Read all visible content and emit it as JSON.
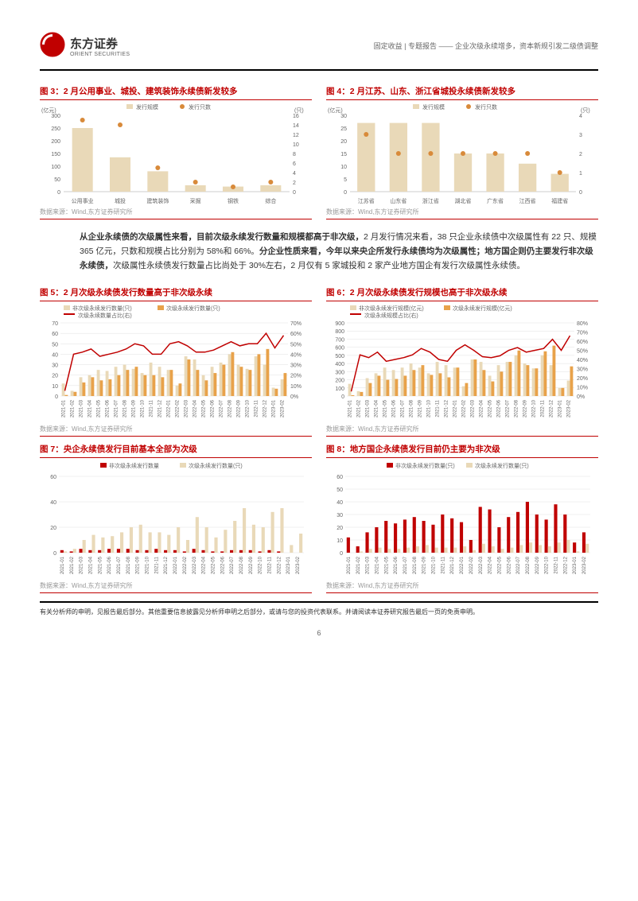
{
  "header": {
    "logo_cn": "东方证券",
    "logo_en": "ORIENT SECURITIES",
    "breadcrumb": "固定收益 | 专题报告 —— 企业次级永续增多，资本新规引发二级债调整"
  },
  "chart3": {
    "title": "图 3：2 月公用事业、城投、建筑装饰永续债新发较多",
    "type": "bar-dot",
    "y1_label": "(亿元)",
    "y2_label": "(只)",
    "legend_bar": "发行规模",
    "legend_dot": "发行只数",
    "bar_color": "#e9d9b8",
    "dot_color": "#d88a3a",
    "categories": [
      "公用事业",
      "城投",
      "建筑装饰",
      "采掘",
      "钢铁",
      "综合"
    ],
    "bars": [
      250,
      135,
      80,
      25,
      20,
      25
    ],
    "dots": [
      15,
      14,
      5,
      2,
      1,
      2
    ],
    "y1_max": 300,
    "y1_step": 50,
    "y2_max": 16,
    "y2_step": 2
  },
  "chart4": {
    "title": "图 4：2 月江苏、山东、浙江省城投永续债新发较多",
    "type": "bar-dot",
    "y1_label": "(亿元)",
    "y2_label": "(只)",
    "legend_bar": "发行规模",
    "legend_dot": "发行只数",
    "bar_color": "#e9d9b8",
    "dot_color": "#d88a3a",
    "categories": [
      "江苏省",
      "山东省",
      "浙江省",
      "湖北省",
      "广东省",
      "江西省",
      "福建省"
    ],
    "bars": [
      27,
      27,
      27,
      15,
      15,
      11,
      7
    ],
    "dots": [
      3,
      2,
      2,
      2,
      2,
      2,
      1
    ],
    "y1_max": 30,
    "y1_step": 5,
    "y2_max": 4,
    "y2_step": 1
  },
  "source_text": "数据来源：Wind,东方证券研究所",
  "paragraph": {
    "p1": "从企业永续债的次级属性来看，目前次级永续发行数量和规模都高于非次级，",
    "p2": "2 月发行情况来看，38 只企业永续债中次级属性有 22 只、规模 365 亿元，只数和规模占比分别为 58%和 66%。",
    "p3": "分企业性质来看，今年以来央企所发行永续债均为次级属性；地方国企则仍主要发行非次级永续债，",
    "p4": "次级属性永续债发行数量占比尚处于 30%左右，2 月仅有 5 家城投和 2 家产业地方国企有发行次级属性永续债。"
  },
  "chart5": {
    "title": "图 5：2 月次级永续债发行数量高于非次级永续",
    "legend1": "非次级永续发行数量(只)",
    "legend2": "次级永续发行数量(只)",
    "legend3": "次级永续数量占比(右)",
    "c1": "#e9d9b8",
    "c2": "#e8a24a",
    "c3": "#c00000",
    "y1_max": 70,
    "y1_step": 10,
    "y2_max": 70,
    "y2_step": 10,
    "y2_suffix": "%",
    "x": [
      "2021-01",
      "2021-02",
      "2021-03",
      "2021-04",
      "2021-05",
      "2021-06",
      "2021-07",
      "2021-08",
      "2021-09",
      "2021-10",
      "2021-11",
      "2021-12",
      "2022-01",
      "2022-02",
      "2022-03",
      "2022-04",
      "2022-05",
      "2022-06",
      "2022-07",
      "2022-08",
      "2022-09",
      "2022-10",
      "2022-11",
      "2022-12",
      "2023-01",
      "2023-02"
    ],
    "s1": [
      12,
      5,
      18,
      20,
      25,
      24,
      28,
      30,
      26,
      22,
      32,
      28,
      25,
      10,
      38,
      35,
      20,
      28,
      32,
      40,
      30,
      26,
      38,
      30,
      8,
      16
    ],
    "s2": [
      1,
      4,
      13,
      18,
      15,
      16,
      20,
      25,
      28,
      20,
      20,
      18,
      25,
      12,
      35,
      25,
      15,
      22,
      30,
      42,
      28,
      25,
      40,
      45,
      7,
      22
    ],
    "line": [
      5,
      40,
      42,
      45,
      38,
      40,
      42,
      45,
      50,
      48,
      40,
      40,
      50,
      52,
      48,
      42,
      42,
      44,
      48,
      52,
      48,
      50,
      50,
      60,
      46,
      58
    ]
  },
  "chart6": {
    "title": "图 6：2 月次级永续债发行规模也高于非次级永续",
    "legend1": "非次级永续发行规模(亿元)",
    "legend2": "次级永续发行规模(亿元)",
    "legend3": "次级永续规模占比(右)",
    "c1": "#e9d9b8",
    "c2": "#e8a24a",
    "c3": "#c00000",
    "y1_max": 900,
    "y1_step": 100,
    "y2_max": 80,
    "y2_step": 10,
    "y2_suffix": "%",
    "x": [
      "2021-01",
      "2021-02",
      "2021-03",
      "2021-04",
      "2021-05",
      "2021-06",
      "2021-07",
      "2021-08",
      "2021-09",
      "2021-10",
      "2021-11",
      "2021-12",
      "2022-01",
      "2022-02",
      "2022-03",
      "2022-04",
      "2022-05",
      "2022-06",
      "2022-07",
      "2022-08",
      "2022-09",
      "2022-10",
      "2022-11",
      "2022-12",
      "2023-01",
      "2023-02"
    ],
    "s1": [
      150,
      60,
      220,
      280,
      350,
      320,
      350,
      400,
      350,
      280,
      420,
      380,
      350,
      120,
      450,
      420,
      250,
      380,
      420,
      500,
      400,
      340,
      500,
      380,
      100,
      190
    ],
    "s2": [
      10,
      50,
      160,
      250,
      200,
      210,
      250,
      320,
      380,
      260,
      280,
      230,
      350,
      160,
      450,
      320,
      180,
      300,
      420,
      560,
      380,
      340,
      550,
      620,
      100,
      365
    ],
    "line": [
      5,
      45,
      42,
      48,
      38,
      40,
      42,
      45,
      52,
      48,
      40,
      38,
      50,
      56,
      50,
      43,
      42,
      44,
      50,
      53,
      48,
      50,
      52,
      62,
      50,
      66
    ]
  },
  "chart7": {
    "title": "图 7：央企永续债发行目前基本全部为次级",
    "legend1": "非次级永续发行数量",
    "legend2": "次级永续发行数量(只)",
    "c1": "#c00000",
    "c2": "#e9d9b8",
    "y1_max": 60,
    "y1_step": 20,
    "x": [
      "2021-01",
      "2021-02",
      "2021-03",
      "2021-04",
      "2021-05",
      "2021-06",
      "2021-07",
      "2021-08",
      "2021-09",
      "2021-10",
      "2021-11",
      "2021-12",
      "2022-01",
      "2022-02",
      "2022-03",
      "2022-04",
      "2022-05",
      "2022-06",
      "2022-07",
      "2022-08",
      "2022-09",
      "2022-10",
      "2022-11",
      "2022-12",
      "2023-01",
      "2023-02"
    ],
    "s1": [
      2,
      1,
      3,
      2,
      2,
      3,
      3,
      3,
      2,
      2,
      3,
      2,
      2,
      1,
      3,
      2,
      1,
      1,
      2,
      2,
      2,
      1,
      2,
      1,
      0,
      0
    ],
    "s2": [
      1,
      3,
      10,
      14,
      12,
      13,
      16,
      20,
      22,
      16,
      16,
      14,
      20,
      10,
      28,
      20,
      12,
      18,
      25,
      35,
      22,
      20,
      32,
      35,
      6,
      15
    ]
  },
  "chart8": {
    "title": "图 8：地方国企永续债发行目前仍主要为非次级",
    "legend1": "非次级永续发行数量(只)",
    "legend2": "次级永续发行数量(只)",
    "c1": "#c00000",
    "c2": "#e9d9b8",
    "y1_max": 60,
    "y1_step": 10,
    "x": [
      "2021-01",
      "2021-02",
      "2021-03",
      "2021-04",
      "2021-05",
      "2021-06",
      "2021-07",
      "2021-08",
      "2021-09",
      "2021-10",
      "2021-11",
      "2021-12",
      "2022-01",
      "2022-02",
      "2022-03",
      "2022-04",
      "2022-05",
      "2022-06",
      "2022-07",
      "2022-08",
      "2022-09",
      "2022-10",
      "2022-11",
      "2022-12",
      "2023-01",
      "2023-02"
    ],
    "s1": [
      12,
      5,
      16,
      20,
      25,
      23,
      26,
      28,
      25,
      22,
      30,
      27,
      24,
      10,
      36,
      34,
      20,
      28,
      32,
      40,
      30,
      26,
      38,
      30,
      8,
      16
    ],
    "s2": [
      0,
      1,
      3,
      4,
      3,
      3,
      4,
      5,
      6,
      4,
      4,
      4,
      5,
      2,
      7,
      5,
      3,
      4,
      6,
      8,
      6,
      5,
      8,
      10,
      1,
      7
    ]
  },
  "footer": {
    "text": "有关分析师的申明，见报告最后部分。其他重要信息披露见分析师申明之后部分，或请与您的投资代表联系。并请阅读本证券研究报告最后一页的免责申明。",
    "page": "6"
  }
}
